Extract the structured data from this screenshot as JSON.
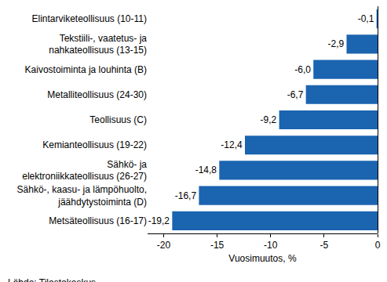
{
  "chart_data": {
    "type": "bar",
    "orientation": "horizontal",
    "categories": [
      "Elintarviketeollisuus (10-11)",
      "Tekstiili-, vaatetus- ja nahkateollisuus (13-15)",
      "Kaivostoiminta ja louhinta (B)",
      "Metalliteollisuus (24-30)",
      "Teollisuus (C)",
      "Kemianteollisuus (19-22)",
      "Sähkö- ja elektroniikkateollisuus (26-27)",
      "Sähkö-, kaasu- ja lämpöhuolto, jäähdytystoiminta (D)",
      "Metsäteollisuus (16-17)"
    ],
    "values": [
      -0.1,
      -2.9,
      -6.0,
      -6.7,
      -9.2,
      -12.4,
      -14.8,
      -16.7,
      -19.2
    ],
    "value_labels": [
      "-0,1",
      "-2,9",
      "-6,0",
      "-6,7",
      "-9,2",
      "-12,4",
      "-14,8",
      "-16,7",
      "-19,2"
    ],
    "data_labels": true,
    "color": "#1b64b0",
    "x_label": "Vuosimuutos, %",
    "source": "Lähde: Tilastokeskus",
    "xlim": [
      -21.5,
      0
    ],
    "xticks": [
      -20,
      -15,
      -10,
      -5,
      0
    ],
    "grid": false
  }
}
